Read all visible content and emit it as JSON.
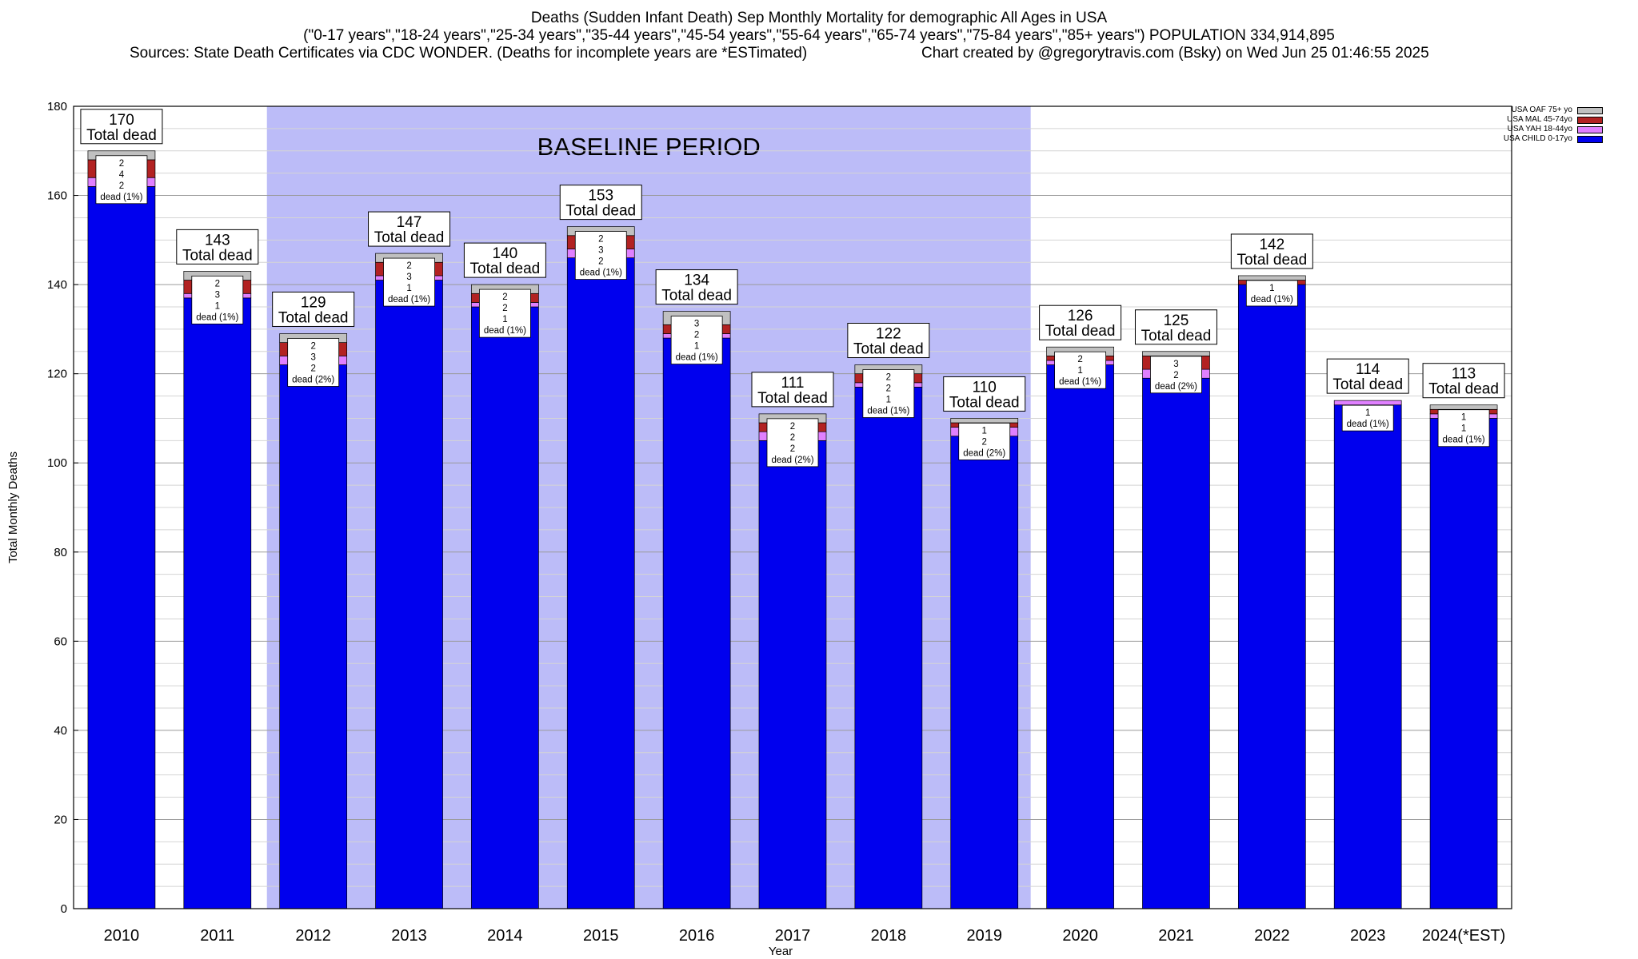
{
  "header": {
    "line1": "Deaths (Sudden Infant Death) Sep Monthly Mortality for demographic All Ages in USA",
    "line2": "(\"0-17 years\",\"18-24 years\",\"25-34 years\",\"35-44 years\",\"45-54 years\",\"55-64 years\",\"65-74 years\",\"75-84 years\",\"85+ years\") POPULATION 334,914,895",
    "sources": "Sources: State Death Certificates via CDC WONDER. (Deaths for incomplete years are *ESTimated)",
    "credit": "Chart created by @gregorytravis.com (Bsky) on Wed Jun 25 01:46:55 2025"
  },
  "legend": [
    {
      "label": "USA OAF 75+ yo",
      "color": "#c0c0c0"
    },
    {
      "label": "USA MAL 45-74yo",
      "color": "#b22222"
    },
    {
      "label": "USA YAH 18-44yo",
      "color": "#e080ff"
    },
    {
      "label": "USA CHILD 0-17yo",
      "color": "#0000ee"
    }
  ],
  "chart_data": {
    "type": "bar",
    "stacked": true,
    "xlabel": "Year",
    "ylabel": "Total Monthly Deaths",
    "ylim": [
      0,
      180
    ],
    "yticks": [
      0,
      20,
      40,
      60,
      80,
      100,
      120,
      140,
      160,
      180
    ],
    "grid": true,
    "legend_position": "top-right",
    "shaded_region": {
      "label": "BASELINE PERIOD",
      "from": "2012",
      "to": "2019",
      "color": "#bcbcf8"
    },
    "total_label_suffix": "Total dead",
    "segment_label_prefix": "dead",
    "categories": [
      "2010",
      "2011",
      "2012",
      "2013",
      "2014",
      "2015",
      "2016",
      "2017",
      "2018",
      "2019",
      "2020",
      "2021",
      "2022",
      "2023",
      "2024(*EST)"
    ],
    "totals": [
      170,
      143,
      129,
      147,
      140,
      153,
      134,
      111,
      122,
      110,
      126,
      125,
      142,
      114,
      113
    ],
    "series": [
      {
        "name": "USA CHILD 0-17yo",
        "color": "#0000ee",
        "values": [
          162,
          137,
          122,
          141,
          135,
          146,
          128,
          105,
          117,
          106,
          122,
          119,
          140,
          113,
          110
        ]
      },
      {
        "name": "USA YAH 18-44yo",
        "color": "#e080ff",
        "values": [
          2,
          1,
          2,
          1,
          1,
          2,
          1,
          2,
          1,
          2,
          1,
          2,
          0,
          1,
          1
        ]
      },
      {
        "name": "USA MAL 45-74yo",
        "color": "#b22222",
        "values": [
          4,
          3,
          3,
          3,
          2,
          3,
          2,
          2,
          2,
          1,
          1,
          3,
          1,
          0,
          1
        ]
      },
      {
        "name": "USA OAF 75+ yo",
        "color": "#c0c0c0",
        "values": [
          2,
          2,
          2,
          2,
          2,
          2,
          3,
          2,
          2,
          1,
          2,
          1,
          1,
          0,
          1
        ]
      }
    ],
    "segment_labels": [
      [
        "2",
        "4",
        "2",
        "dead (1%)"
      ],
      [
        "2",
        "3",
        "1",
        "dead (1%)"
      ],
      [
        "2",
        "3",
        "2",
        "dead (2%)"
      ],
      [
        "2",
        "3",
        "1",
        "dead (1%)"
      ],
      [
        "2",
        "2",
        "1",
        "dead (1%)"
      ],
      [
        "2",
        "3",
        "2",
        "dead (1%)"
      ],
      [
        "3",
        "2",
        "1",
        "dead (1%)"
      ],
      [
        "2",
        "2",
        "2",
        "dead (2%)"
      ],
      [
        "2",
        "2",
        "1",
        "dead (1%)"
      ],
      [
        "1",
        "2",
        "dead (2%)"
      ],
      [
        "2",
        "1",
        "dead (1%)"
      ],
      [
        "3",
        "2",
        "dead (2%)"
      ],
      [
        "1",
        "dead (1%)"
      ],
      [
        "1",
        "dead (1%)"
      ],
      [
        "1",
        "1",
        "dead (1%)"
      ]
    ]
  }
}
